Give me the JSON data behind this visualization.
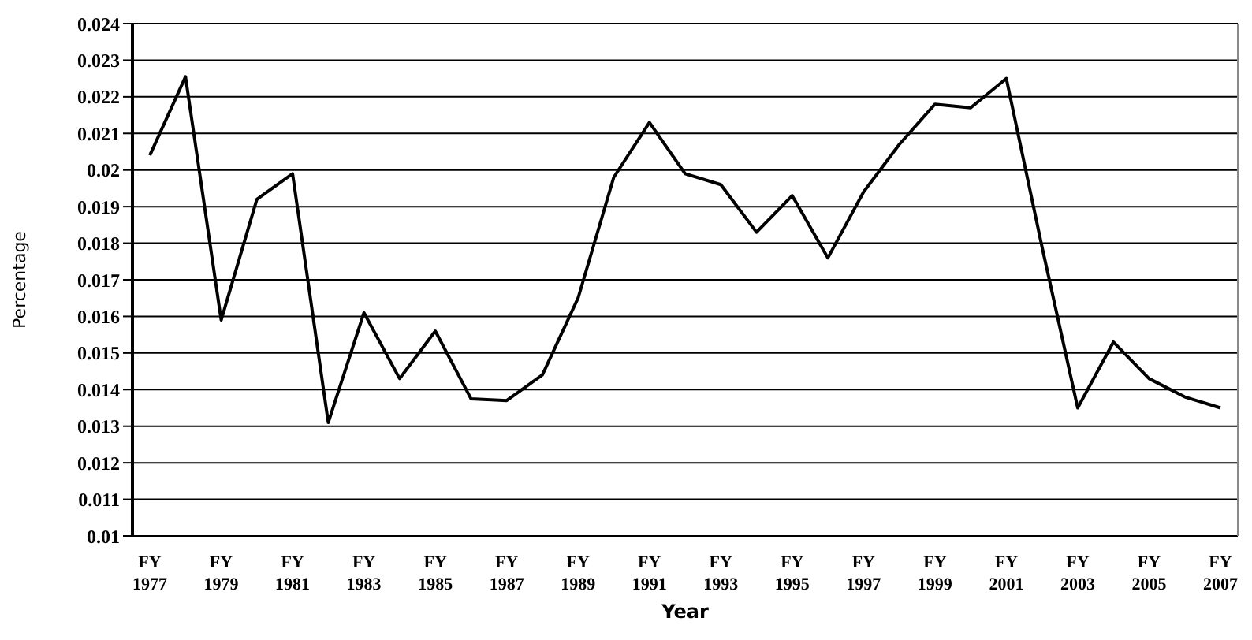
{
  "chart_data": {
    "type": "line",
    "xlabel": "Year",
    "ylabel": "Percentage",
    "categories": [
      "FY 1977",
      null,
      "FY 1979",
      null,
      "FY 1981",
      null,
      "FY 1983",
      null,
      "FY 1985",
      null,
      "FY 1987",
      null,
      "FY 1989",
      null,
      "FY 1991",
      null,
      "FY 1993",
      null,
      "FY 1995",
      null,
      "FY 1997",
      null,
      "FY 1999",
      null,
      "FY 2001",
      null,
      "FY 2003",
      null,
      "FY 2005",
      null,
      "FY 2007"
    ],
    "series": [
      {
        "color": "#000000",
        "values": [
          0.0204,
          0.02255,
          0.0159,
          0.0192,
          0.0199,
          0.0131,
          0.0161,
          0.0143,
          0.0156,
          0.01375,
          0.0137,
          0.0144,
          0.0165,
          0.0198,
          0.0213,
          0.0199,
          0.0196,
          0.0183,
          0.0193,
          0.0176,
          0.0194,
          0.0207,
          0.0218,
          0.0217,
          0.0225,
          0.0179,
          0.0135,
          0.0153,
          0.0143,
          0.0138,
          0.0135
        ]
      }
    ],
    "ylim": [
      0.01,
      0.024
    ],
    "yticks": [
      0.01,
      0.011,
      0.012,
      0.013,
      0.014,
      0.015,
      0.016,
      0.017,
      0.018,
      0.019,
      0.02,
      0.021,
      0.022,
      0.023,
      0.024
    ],
    "grid": "y",
    "legend": false,
    "marker": "none",
    "line_style": "solid"
  }
}
